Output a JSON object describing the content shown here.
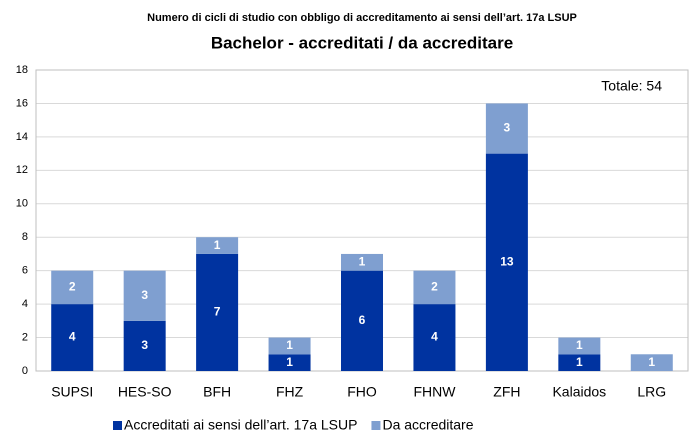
{
  "chart_data": {
    "type": "stacked_bar",
    "title": "Numero di cicli di studio con obbligo di accreditamento ai sensi dell’art. 17a LSUP",
    "subtitle": "Bachelor - accreditati / da accreditare",
    "annotation": "Totale: 54",
    "categories": [
      "SUPSI",
      "HES-SO",
      "BFH",
      "FHZ",
      "FHO",
      "FHNW",
      "ZFH",
      "Kalaidos",
      "LRG"
    ],
    "series": [
      {
        "name": "Accreditati ai sensi dell’art. 17a LSUP",
        "color": "#0033a0",
        "values": [
          4,
          3,
          7,
          1,
          6,
          4,
          13,
          1,
          0
        ]
      },
      {
        "name": "Da accreditare",
        "color": "#7f9fd0",
        "values": [
          2,
          3,
          1,
          1,
          1,
          2,
          3,
          1,
          1
        ]
      }
    ],
    "ylim": [
      0,
      18
    ],
    "yticks": [
      0,
      2,
      4,
      6,
      8,
      10,
      12,
      14,
      16,
      18
    ],
    "grid": true,
    "legend": "bottom"
  }
}
